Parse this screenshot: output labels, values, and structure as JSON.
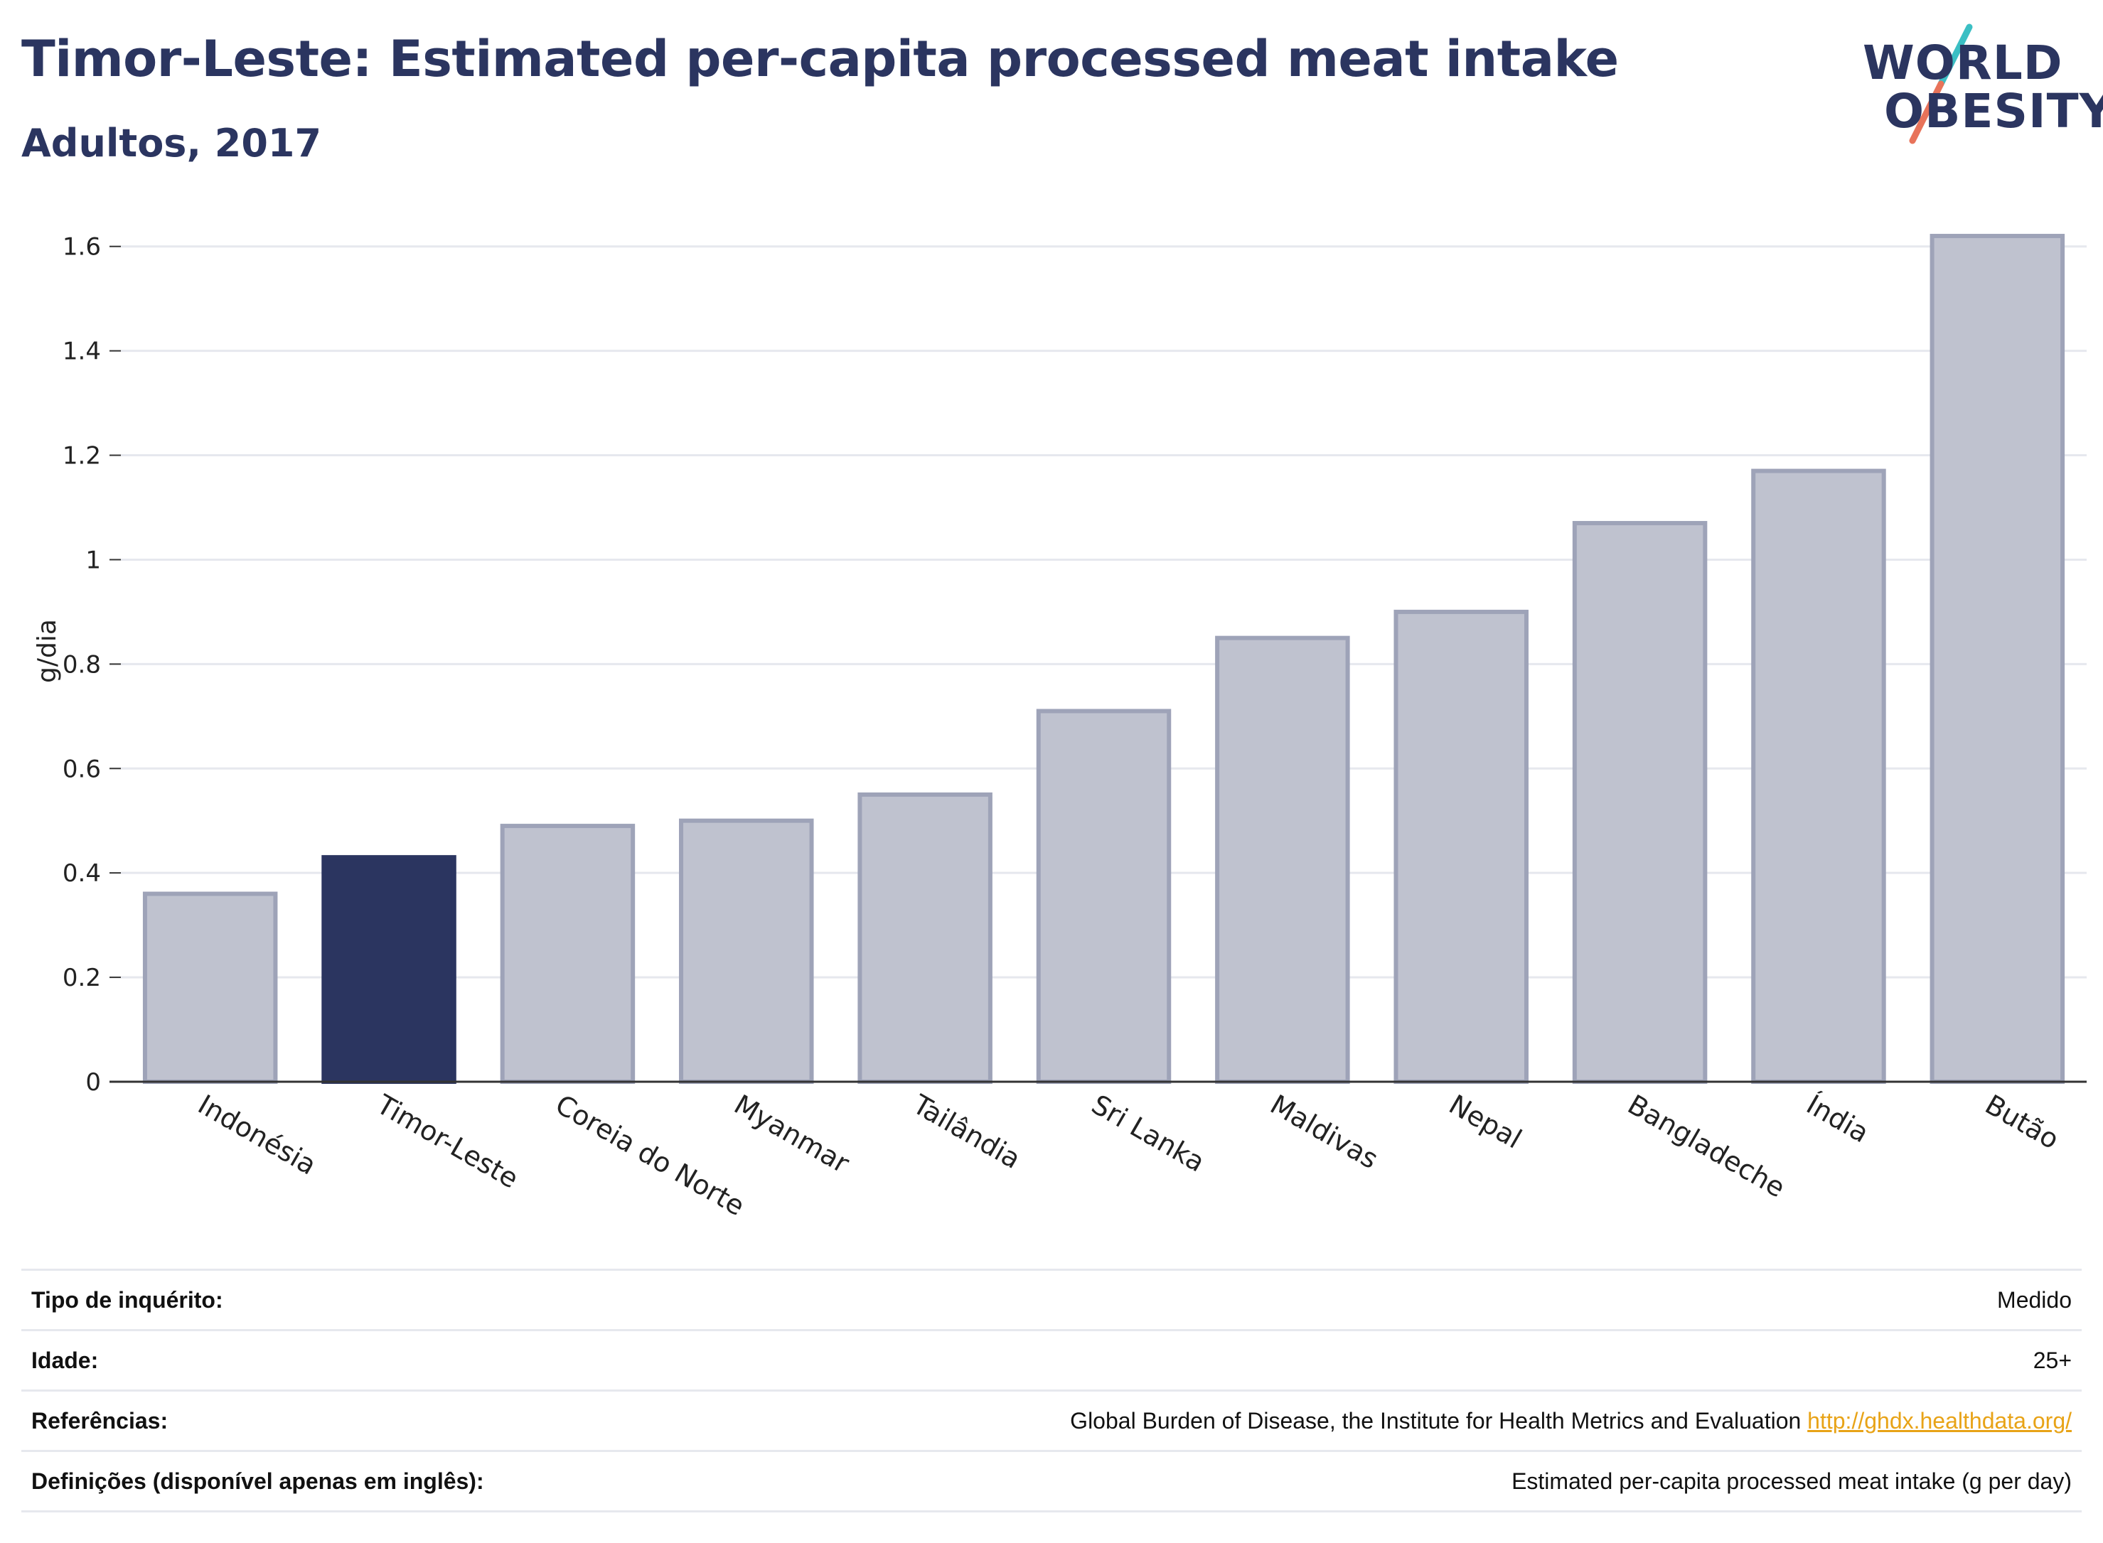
{
  "header": {
    "title": "Timor-Leste: Estimated per-capita processed meat intake",
    "subtitle": "Adultos, 2017"
  },
  "logo": {
    "line1": "WORLD",
    "line2": "OBESITY"
  },
  "chart_data": {
    "type": "bar",
    "ylabel": "g/dia",
    "xlabel": "",
    "ylim": [
      0,
      1.65
    ],
    "yticks": [
      0,
      0.2,
      0.4,
      0.6,
      0.8,
      1,
      1.2,
      1.4,
      1.6
    ],
    "ytick_labels": [
      "0",
      "0.2",
      "0.4",
      "0.6",
      "0.8",
      "1",
      "1.2",
      "1.4",
      "1.6"
    ],
    "grid": true,
    "categories": [
      "Indonésia",
      "Timor-Leste",
      "Coreia do Norte",
      "Myanmar",
      "Tailândia",
      "Sri Lanka",
      "Maldivas",
      "Nepal",
      "Bangladeche",
      "Índia",
      "Butão"
    ],
    "values": [
      0.36,
      0.43,
      0.49,
      0.5,
      0.55,
      0.71,
      0.85,
      0.9,
      1.07,
      1.17,
      1.62
    ],
    "highlight": "Timor-Leste",
    "colors": {
      "bar": "#bfc2cf",
      "bar_edge": "#9ea3b8",
      "highlight": "#2b3560",
      "grid": "#e6e8ee",
      "axis": "#333333"
    }
  },
  "footer": {
    "rows": [
      {
        "label": "Tipo de inquérito:",
        "value": "Medido"
      },
      {
        "label": "Idade:",
        "value": "25+"
      },
      {
        "label": "Referências:",
        "value": "Global Burden of Disease, the Institute for Health Metrics and Evaluation",
        "link": "http://ghdx.healthdata.org/"
      },
      {
        "label": "Definições (disponível apenas em inglês):",
        "value": "Estimated per-capita processed meat intake (g per day)"
      }
    ]
  }
}
